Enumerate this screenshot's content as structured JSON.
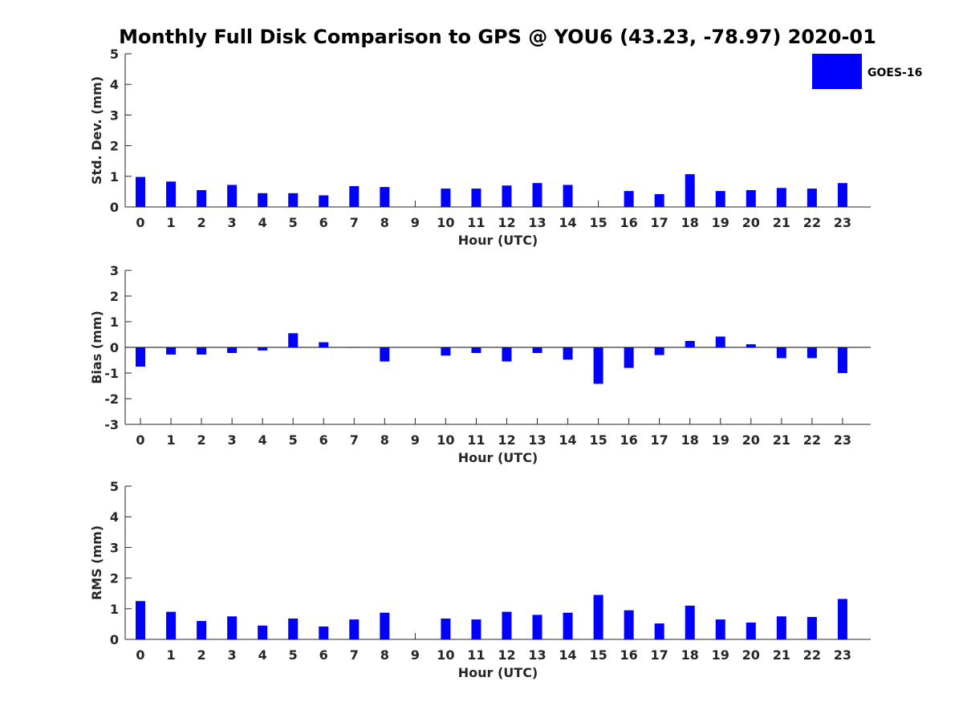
{
  "chart_data": {
    "type": "bar",
    "title": "Monthly Full Disk Comparison to GPS @ YOU6 (43.23, -78.97) 2020-01",
    "series_color": "#0000ff",
    "legend": {
      "label": "GOES-16",
      "placement": "top-right"
    },
    "categories": [
      "0",
      "1",
      "2",
      "3",
      "4",
      "5",
      "6",
      "7",
      "8",
      "9",
      "10",
      "11",
      "12",
      "13",
      "14",
      "15",
      "16",
      "17",
      "18",
      "19",
      "20",
      "21",
      "22",
      "23"
    ],
    "subplots": [
      {
        "name": "std",
        "ylabel": "Std. Dev. (mm)",
        "xlabel": "Hour (UTC)",
        "ylim": [
          0,
          5
        ],
        "yticks": [
          0,
          1,
          2,
          3,
          4,
          5
        ],
        "values": [
          0.98,
          0.83,
          0.55,
          0.72,
          0.45,
          0.45,
          0.38,
          0.68,
          0.65,
          null,
          0.6,
          0.6,
          0.7,
          0.78,
          0.72,
          null,
          0.52,
          0.42,
          1.07,
          0.52,
          0.55,
          0.62,
          0.6,
          0.78
        ]
      },
      {
        "name": "bias",
        "ylabel": "Bias (mm)",
        "xlabel": "Hour (UTC)",
        "ylim": [
          -3,
          3
        ],
        "yticks": [
          -3,
          -2,
          -1,
          0,
          1,
          2,
          3
        ],
        "values": [
          -0.75,
          -0.28,
          -0.28,
          -0.22,
          -0.12,
          0.55,
          0.2,
          -0.02,
          -0.55,
          null,
          -0.32,
          -0.22,
          -0.55,
          -0.22,
          -0.48,
          -1.42,
          -0.8,
          -0.3,
          0.25,
          0.42,
          0.12,
          -0.42,
          -0.42,
          -1.0
        ]
      },
      {
        "name": "rms",
        "ylabel": "RMS (mm)",
        "xlabel": "Hour (UTC)",
        "ylim": [
          0,
          5
        ],
        "yticks": [
          0,
          1,
          2,
          3,
          4,
          5
        ],
        "values": [
          1.25,
          0.9,
          0.6,
          0.75,
          0.45,
          0.68,
          0.42,
          0.65,
          0.87,
          null,
          0.68,
          0.65,
          0.9,
          0.8,
          0.87,
          1.45,
          0.95,
          0.52,
          1.1,
          0.65,
          0.55,
          0.75,
          0.73,
          1.32
        ]
      }
    ]
  }
}
